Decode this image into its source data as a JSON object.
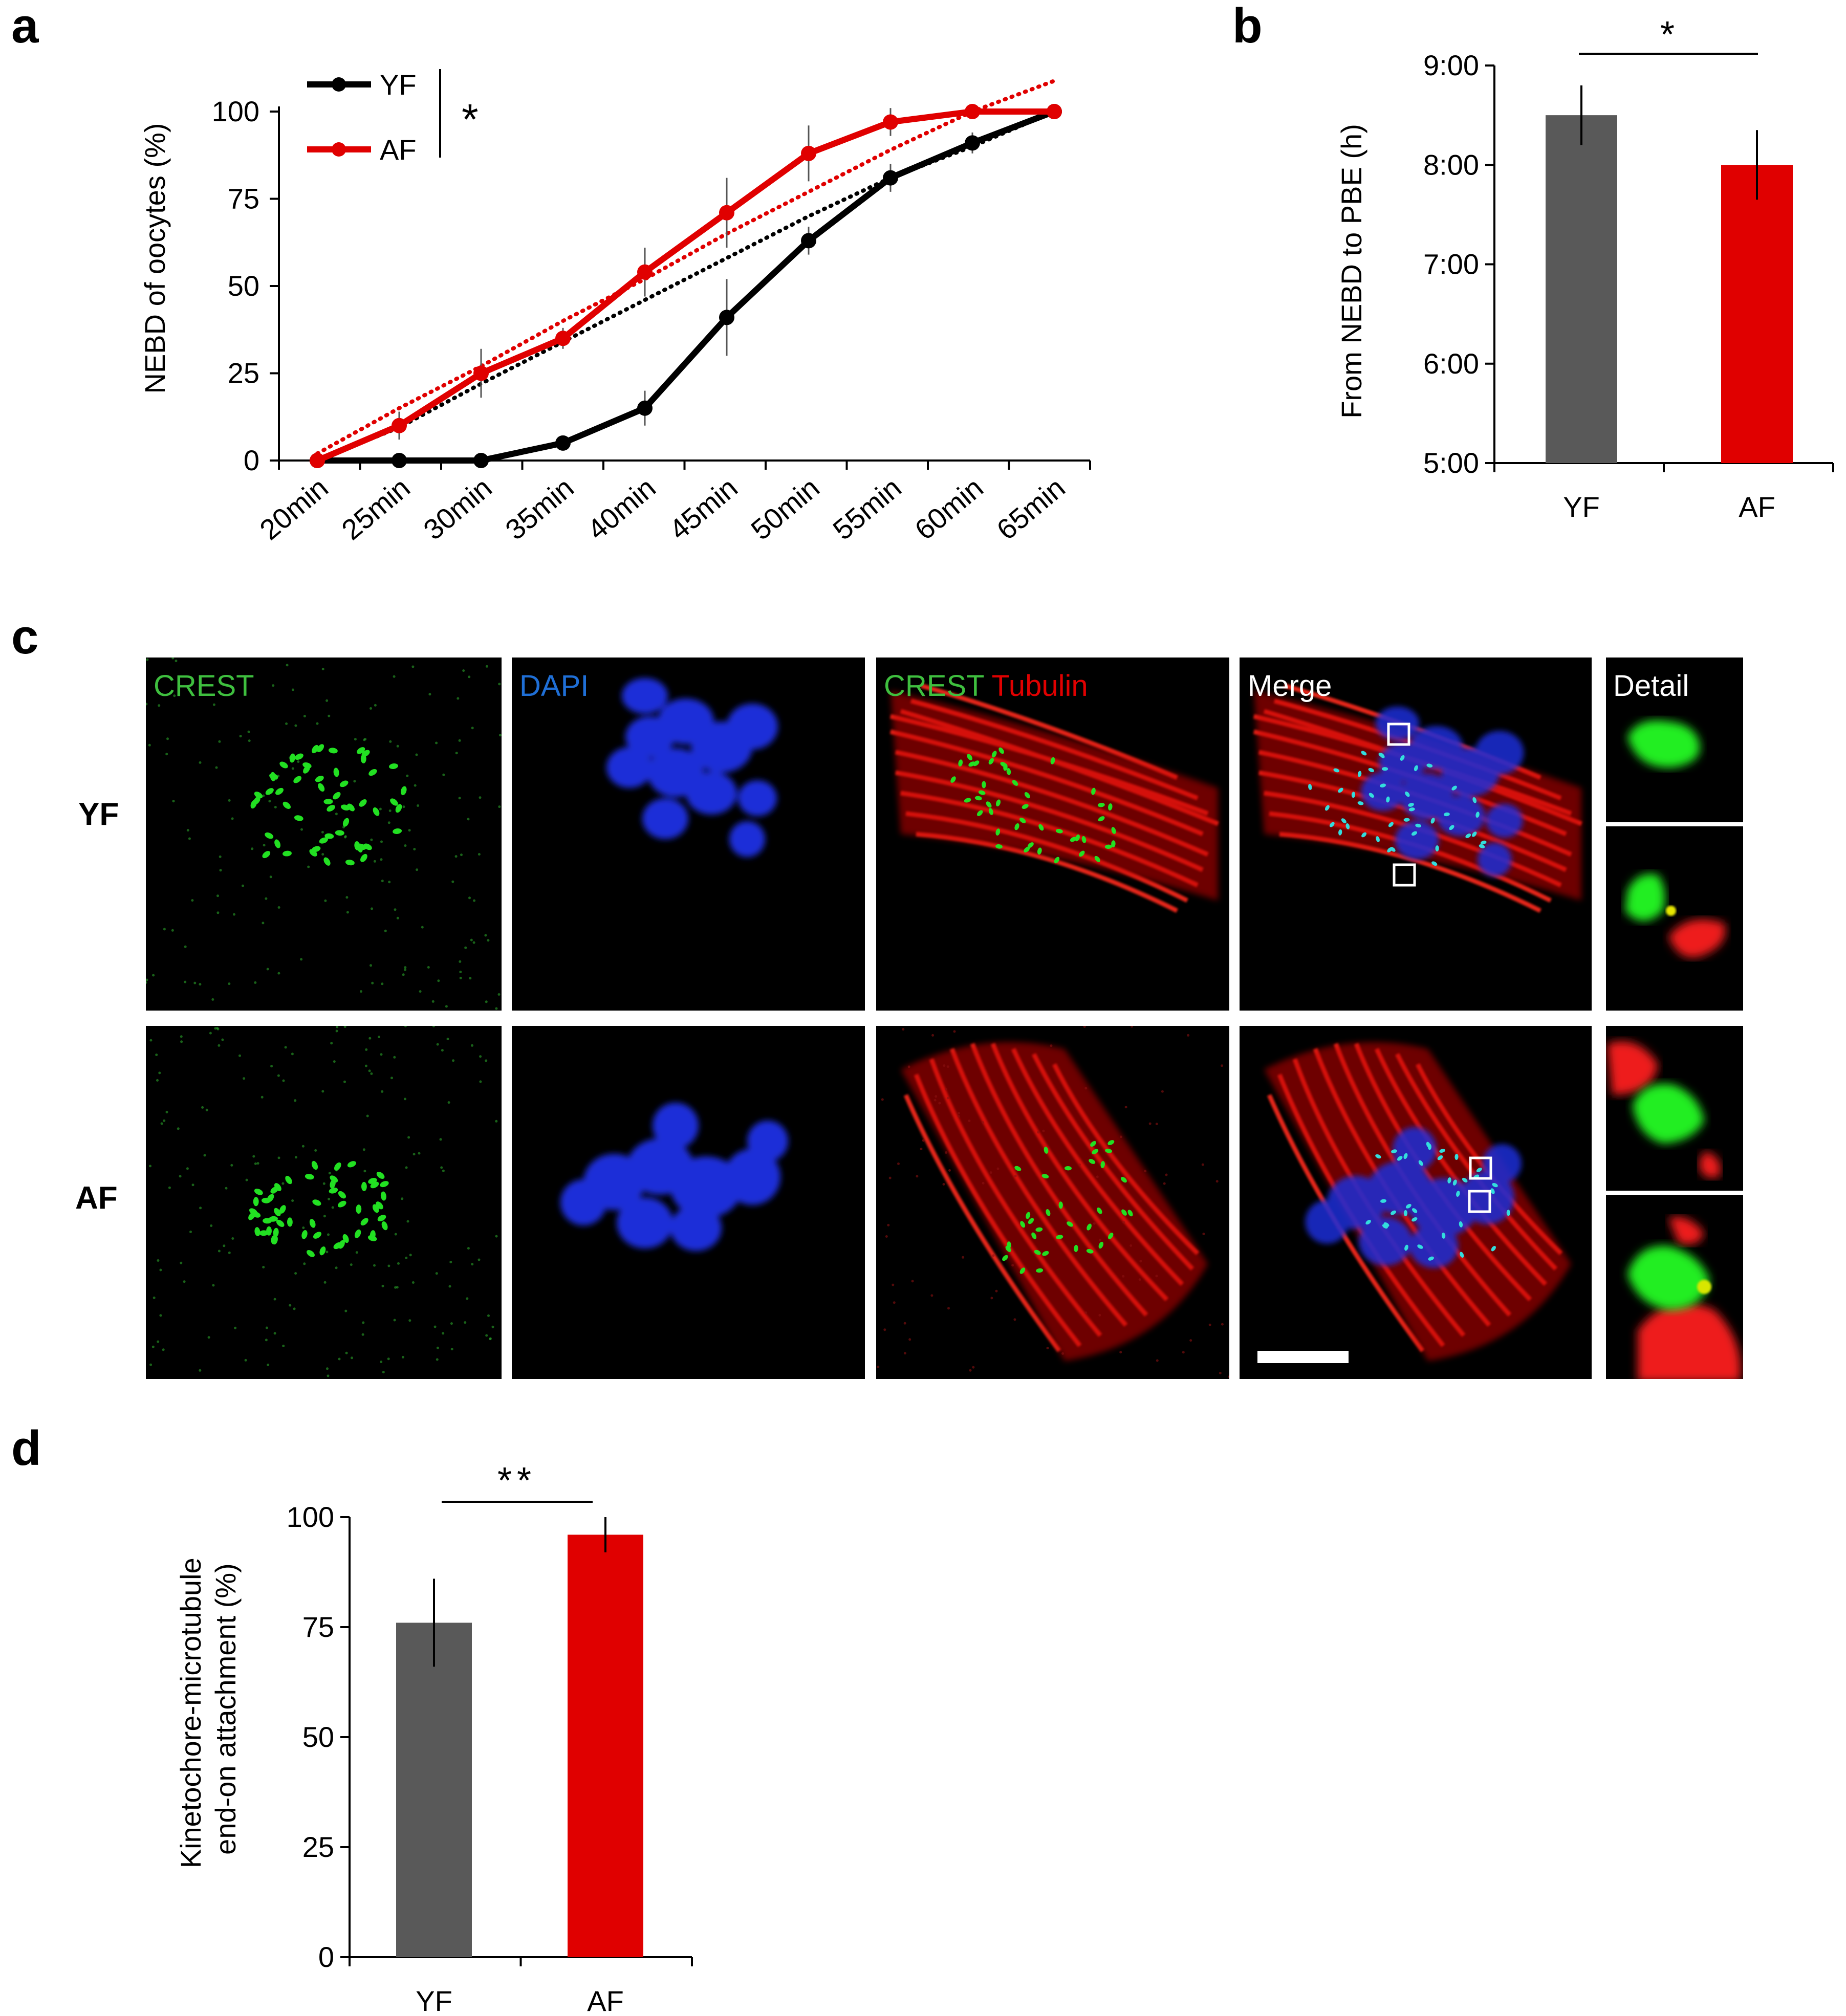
{
  "panels": {
    "a": "a",
    "b": "b",
    "c": "c",
    "d": "d"
  },
  "panel_a": {
    "chart_data": {
      "type": "line",
      "title": "",
      "xlabel": "",
      "ylabel": "NEBD of oocytes (%)",
      "categories": [
        "20min",
        "25min",
        "30min",
        "35min",
        "40min",
        "45min",
        "50min",
        "55min",
        "60min",
        "65min"
      ],
      "ylim": [
        0,
        100
      ],
      "yticks": [
        0,
        25,
        50,
        75,
        100
      ],
      "series": [
        {
          "name": "YF",
          "color": "#000000",
          "values": [
            0,
            0,
            0,
            5,
            15,
            41,
            63,
            81,
            91,
            100
          ],
          "errors": [
            0,
            0,
            0,
            1.5,
            5,
            11,
            4,
            4,
            3,
            0
          ],
          "trend": [
            -3,
            9.5,
            22,
            34,
            46,
            58,
            70,
            81,
            90,
            100
          ]
        },
        {
          "name": "AF",
          "color": "#e00000",
          "values": [
            0,
            10,
            25,
            35,
            54,
            71,
            88,
            97,
            100,
            100
          ],
          "errors": [
            0,
            4,
            7,
            3,
            7,
            10,
            8,
            4,
            0,
            0
          ],
          "trend": [
            2,
            15,
            27,
            40,
            52,
            65,
            77,
            89,
            100,
            109
          ]
        }
      ],
      "significance": "*",
      "grid": false,
      "legend_position": "top-left"
    }
  },
  "panel_b": {
    "chart_data": {
      "type": "bar",
      "title": "",
      "xlabel": "",
      "ylabel": "From NEBD to PBE (h)",
      "categories": [
        "YF",
        "AF"
      ],
      "values": [
        8.5,
        8.0
      ],
      "errors": [
        0.3,
        0.35
      ],
      "colors": [
        "#595959",
        "#e00000"
      ],
      "ylim": [
        5,
        9
      ],
      "yticks": [
        "5:00",
        "6:00",
        "7:00",
        "8:00",
        "9:00"
      ],
      "significance": "*"
    }
  },
  "panel_c": {
    "columns": [
      "CREST",
      "DAPI",
      "CREST",
      "Tubulin",
      "Merge",
      "Detail"
    ],
    "rows": [
      "YF",
      "AF"
    ],
    "colors": {
      "crest": "#3fbf3f",
      "dapi": "#1f6fd6",
      "tubulin": "#e00000",
      "merge": "#ffffff"
    }
  },
  "panel_d": {
    "chart_data": {
      "type": "bar",
      "title": "",
      "xlabel": "",
      "ylabel": "Kinetochore-microtubule end-on attachment (%)",
      "ylabel_lines": [
        "Kinetochore-microtubule",
        "end-on attachment (%)"
      ],
      "categories": [
        "YF",
        "AF"
      ],
      "values": [
        76,
        96
      ],
      "errors": [
        10,
        4
      ],
      "colors": [
        "#595959",
        "#e00000"
      ],
      "ylim": [
        0,
        100
      ],
      "yticks": [
        0,
        25,
        50,
        75,
        100
      ],
      "significance": "**"
    }
  }
}
